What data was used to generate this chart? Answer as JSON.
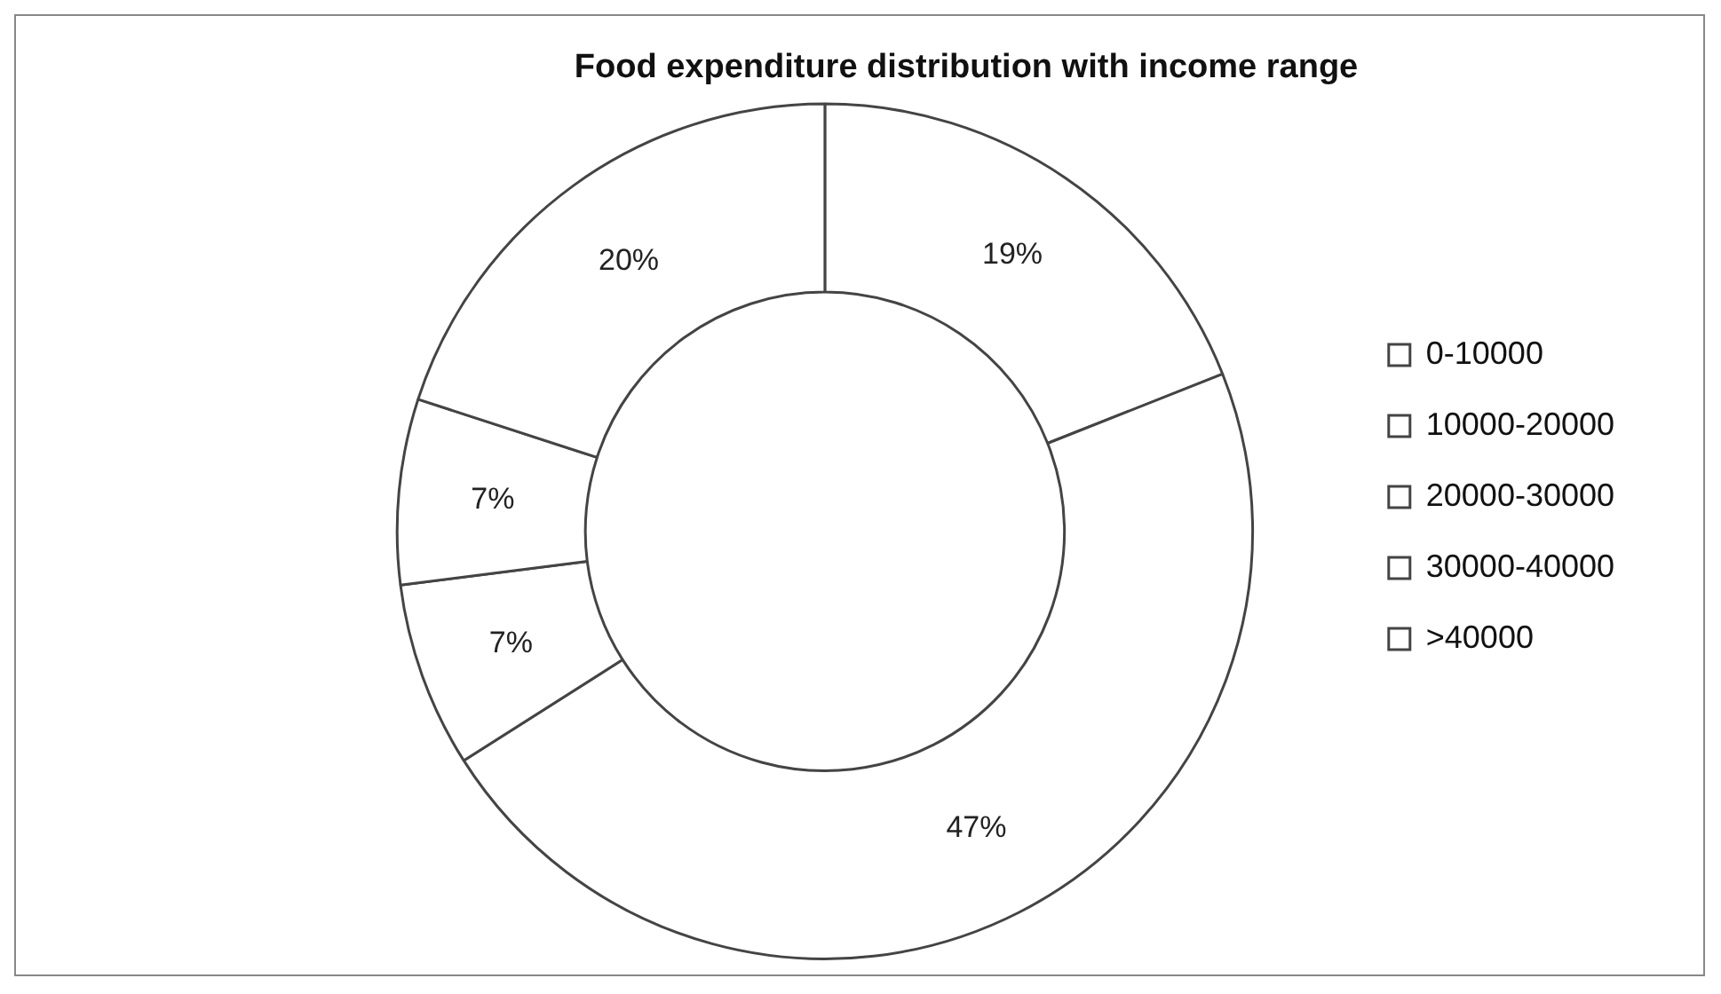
{
  "chart_data": {
    "type": "donut",
    "title": "Food expenditure distribution with income range",
    "categories": [
      "0-10000",
      "10000-20000",
      "20000-30000",
      "30000-40000",
      ">40000"
    ],
    "values": [
      19,
      47,
      7,
      7,
      20
    ],
    "colors": [
      "#ffffff",
      "#ffffff",
      "#ffffff",
      "#ffffff",
      "#ffffff"
    ],
    "value_labels": [
      "19%",
      "47%",
      "7%",
      "7%",
      "20%"
    ],
    "legend": "right"
  }
}
